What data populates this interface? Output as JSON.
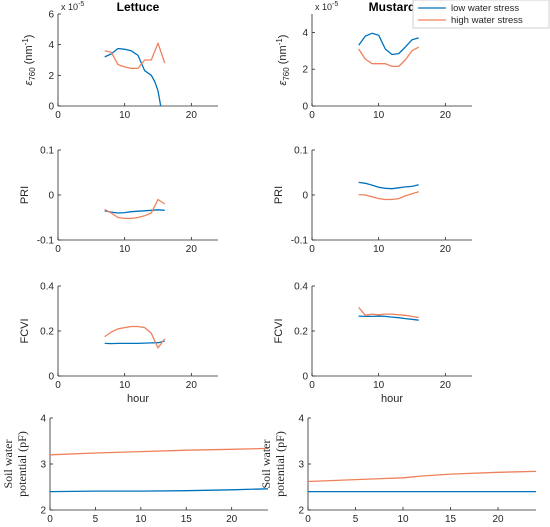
{
  "colors": {
    "low": "#0072BD",
    "high": "#F0805C",
    "axis": "#262626"
  },
  "legend": {
    "position": "top-right",
    "low_label": "low water stress",
    "high_label": "high water stress"
  },
  "chart_data": [
    {
      "type": "line",
      "title": "Lettuce",
      "ylabel": "ε760 (nm-1)",
      "ylabel_parts": [
        "ε",
        "760",
        "(nm",
        "-1",
        ")"
      ],
      "exponent": "x 10-5",
      "exponent_parts": [
        "x 10",
        "-5"
      ],
      "xlabel": "",
      "xlim": [
        0,
        24
      ],
      "ylim": [
        0,
        6
      ],
      "xticks": [
        "0",
        "10",
        "20"
      ],
      "yticks": [
        "0",
        "2",
        "4",
        "6"
      ],
      "series": [
        {
          "name": "low water stress",
          "color": "low",
          "x": [
            7,
            8,
            9,
            10,
            11,
            12,
            13,
            14,
            14.5,
            15,
            15.4
          ],
          "y": [
            3.2,
            3.4,
            3.75,
            3.7,
            3.6,
            3.3,
            2.3,
            2.0,
            1.6,
            1.0,
            0.0
          ]
        },
        {
          "name": "high water stress",
          "color": "high",
          "x": [
            7,
            8,
            9,
            10,
            11,
            12,
            13,
            14,
            15,
            16
          ],
          "y": [
            3.6,
            3.5,
            2.7,
            2.55,
            2.45,
            2.45,
            3.0,
            3.0,
            4.1,
            2.8
          ]
        }
      ]
    },
    {
      "type": "line",
      "title": "Mustard",
      "ylabel": "ε760 (nm-1)",
      "ylabel_parts": [
        "ε",
        "760",
        "(nm",
        "-1",
        ")"
      ],
      "exponent": "x 10-5",
      "exponent_parts": [
        "x 10",
        "-5"
      ],
      "xlabel": "",
      "xlim": [
        0,
        24
      ],
      "ylim": [
        0,
        5
      ],
      "xticks": [
        "0",
        "10",
        "20"
      ],
      "yticks": [
        "0",
        "2",
        "4"
      ],
      "series": [
        {
          "name": "low water stress",
          "color": "low",
          "x": [
            7,
            8,
            9,
            10,
            11,
            12,
            13,
            14,
            15,
            16
          ],
          "y": [
            3.3,
            3.8,
            3.95,
            3.85,
            3.1,
            2.8,
            2.85,
            3.2,
            3.6,
            3.7
          ]
        },
        {
          "name": "high water stress",
          "color": "high",
          "x": [
            7,
            8,
            9,
            10,
            11,
            12,
            13,
            14,
            15,
            16
          ],
          "y": [
            3.1,
            2.55,
            2.3,
            2.3,
            2.3,
            2.15,
            2.15,
            2.5,
            3.0,
            3.2
          ]
        }
      ]
    },
    {
      "type": "line",
      "title": "",
      "ylabel": "PRI",
      "xlabel": "",
      "xlim": [
        0,
        24
      ],
      "ylim": [
        -0.1,
        0.1
      ],
      "xticks": [
        "0",
        "10",
        "20"
      ],
      "yticks": [
        "-0.1",
        "0",
        "0.1"
      ],
      "series": [
        {
          "name": "low water stress",
          "color": "low",
          "x": [
            7,
            8,
            9,
            10,
            11,
            12,
            13,
            14,
            15,
            16
          ],
          "y": [
            -0.035,
            -0.038,
            -0.04,
            -0.039,
            -0.037,
            -0.036,
            -0.035,
            -0.034,
            -0.033,
            -0.034
          ]
        },
        {
          "name": "high water stress",
          "color": "high",
          "x": [
            7,
            8,
            9,
            10,
            11,
            12,
            13,
            14,
            15,
            16
          ],
          "y": [
            -0.032,
            -0.04,
            -0.05,
            -0.052,
            -0.052,
            -0.05,
            -0.046,
            -0.04,
            -0.01,
            -0.02
          ]
        }
      ]
    },
    {
      "type": "line",
      "title": "",
      "ylabel": "PRI",
      "xlabel": "",
      "xlim": [
        0,
        24
      ],
      "ylim": [
        -0.1,
        0.1
      ],
      "xticks": [
        "0",
        "10",
        "20"
      ],
      "yticks": [
        "-0.1",
        "0",
        "0.1"
      ],
      "series": [
        {
          "name": "low water stress",
          "color": "low",
          "x": [
            7,
            8,
            9,
            10,
            11,
            12,
            13,
            14,
            15,
            16
          ],
          "y": [
            0.028,
            0.026,
            0.022,
            0.017,
            0.015,
            0.014,
            0.016,
            0.018,
            0.019,
            0.023
          ]
        },
        {
          "name": "high water stress",
          "color": "high",
          "x": [
            7,
            8,
            9,
            10,
            11,
            12,
            13,
            14,
            15,
            16
          ],
          "y": [
            0.001,
            0.0,
            -0.004,
            -0.008,
            -0.01,
            -0.01,
            -0.008,
            -0.002,
            0.003,
            0.007
          ]
        }
      ]
    },
    {
      "type": "line",
      "title": "",
      "ylabel": "FCVI",
      "xlabel": "hour",
      "xlim": [
        0,
        24
      ],
      "ylim": [
        0,
        0.4
      ],
      "xticks": [
        "0",
        "10",
        "20"
      ],
      "yticks": [
        "0",
        "0.2",
        "0.4"
      ],
      "series": [
        {
          "name": "low water stress",
          "color": "low",
          "x": [
            7,
            8,
            9,
            10,
            11,
            12,
            13,
            14,
            15,
            16
          ],
          "y": [
            0.145,
            0.144,
            0.145,
            0.145,
            0.145,
            0.145,
            0.146,
            0.147,
            0.148,
            0.155
          ]
        },
        {
          "name": "high water stress",
          "color": "high",
          "x": [
            7,
            8,
            9,
            10,
            11,
            12,
            13,
            14,
            15,
            16
          ],
          "y": [
            0.175,
            0.195,
            0.21,
            0.215,
            0.22,
            0.22,
            0.215,
            0.19,
            0.125,
            0.165
          ]
        }
      ]
    },
    {
      "type": "line",
      "title": "",
      "ylabel": "FCVI",
      "xlabel": "hour",
      "xlim": [
        0,
        24
      ],
      "ylim": [
        0,
        0.4
      ],
      "xticks": [
        "0",
        "10",
        "20"
      ],
      "yticks": [
        "0",
        "0.2",
        "0.4"
      ],
      "series": [
        {
          "name": "low water stress",
          "color": "low",
          "x": [
            7,
            8,
            9,
            10,
            11,
            12,
            13,
            14,
            15,
            16
          ],
          "y": [
            0.266,
            0.265,
            0.265,
            0.266,
            0.265,
            0.262,
            0.259,
            0.255,
            0.252,
            0.248
          ]
        },
        {
          "name": "high water stress",
          "color": "high",
          "x": [
            7,
            8,
            9,
            10,
            11,
            12,
            13,
            14,
            15,
            16
          ],
          "y": [
            0.305,
            0.27,
            0.275,
            0.272,
            0.275,
            0.275,
            0.272,
            0.27,
            0.265,
            0.26
          ]
        }
      ]
    },
    {
      "type": "line",
      "title": "",
      "ylabel": "Soil water potential (pF)",
      "ylabel_lines": [
        "Soil water",
        "potential (pF)"
      ],
      "xlabel": "",
      "xlim": [
        0,
        24
      ],
      "ylim": [
        2,
        4
      ],
      "xticks": [
        "0",
        "5",
        "10",
        "15",
        "20"
      ],
      "yticks": [
        "2",
        "3",
        "4"
      ],
      "series": [
        {
          "name": "low water stress",
          "color": "low",
          "x": [
            0,
            5,
            10,
            15,
            20,
            24
          ],
          "y": [
            2.4,
            2.41,
            2.41,
            2.42,
            2.44,
            2.46
          ]
        },
        {
          "name": "high water stress",
          "color": "high",
          "x": [
            0,
            5,
            10,
            15,
            20,
            24
          ],
          "y": [
            3.2,
            3.24,
            3.27,
            3.3,
            3.32,
            3.34
          ]
        }
      ]
    },
    {
      "type": "line",
      "title": "",
      "ylabel": "Soil water potential (pF)",
      "ylabel_lines": [
        "Soil water",
        "potential (pF)"
      ],
      "xlabel": "",
      "xlim": [
        0,
        24
      ],
      "ylim": [
        2,
        4
      ],
      "xticks": [
        "0",
        "5",
        "10",
        "15",
        "20"
      ],
      "yticks": [
        "2",
        "3",
        "4"
      ],
      "series": [
        {
          "name": "low water stress",
          "color": "low",
          "x": [
            0,
            5,
            10,
            15,
            20,
            24
          ],
          "y": [
            2.4,
            2.4,
            2.4,
            2.4,
            2.4,
            2.4
          ]
        },
        {
          "name": "high water stress",
          "color": "high",
          "x": [
            0,
            5,
            10,
            12,
            15,
            20,
            24
          ],
          "y": [
            2.62,
            2.66,
            2.7,
            2.74,
            2.78,
            2.82,
            2.84
          ]
        }
      ]
    }
  ]
}
